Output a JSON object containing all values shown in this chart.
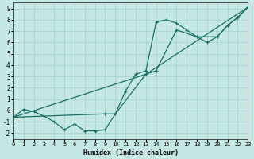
{
  "title": "",
  "xlabel": "Humidex (Indice chaleur)",
  "xlim": [
    0,
    23
  ],
  "ylim": [
    -2.5,
    9.5
  ],
  "xticks": [
    0,
    1,
    2,
    3,
    4,
    5,
    6,
    7,
    8,
    9,
    10,
    11,
    12,
    13,
    14,
    15,
    16,
    17,
    18,
    19,
    20,
    21,
    22,
    23
  ],
  "yticks": [
    -2,
    -1,
    0,
    1,
    2,
    3,
    4,
    5,
    6,
    7,
    8,
    9
  ],
  "bg_color": "#c5e8e5",
  "grid_color": "#a8d4d0",
  "line_color": "#1a6e66",
  "line1_x": [
    0,
    1,
    2,
    3,
    4,
    5,
    6,
    7,
    8,
    9,
    10,
    11,
    12,
    13,
    14,
    15,
    16,
    17,
    18,
    19,
    20,
    21,
    22,
    23
  ],
  "line1_y": [
    -0.6,
    0.1,
    -0.1,
    -0.5,
    -1.0,
    -1.7,
    -1.2,
    -1.8,
    -1.8,
    -1.7,
    -0.3,
    1.7,
    3.2,
    3.5,
    7.8,
    8.0,
    7.7,
    7.1,
    6.5,
    6.0,
    6.5,
    7.5,
    8.2,
    9.1
  ],
  "line2_x": [
    0,
    9,
    10,
    13,
    14,
    16,
    18,
    20,
    21,
    22,
    23
  ],
  "line2_y": [
    -0.6,
    -0.3,
    -0.3,
    3.2,
    3.5,
    7.1,
    6.5,
    6.5,
    7.5,
    8.2,
    9.1
  ],
  "line3_x": [
    0,
    13,
    23
  ],
  "line3_y": [
    -0.6,
    3.2,
    9.1
  ]
}
